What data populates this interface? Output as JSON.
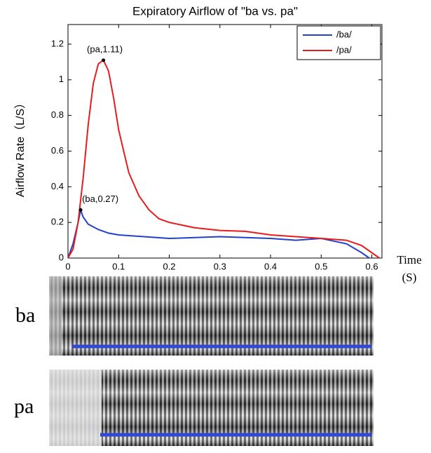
{
  "chart_data": {
    "type": "line",
    "title": "Expiratory Airflow of \"ba vs. pa\"",
    "x_label": [
      "Time",
      "(S)"
    ],
    "y_label": "Airflow Rate（L/S）",
    "xlim": [
      0,
      0.62
    ],
    "ylim": [
      0,
      1.31
    ],
    "xticks": [
      0,
      0.1,
      0.2,
      0.3,
      0.4,
      0.5,
      0.6
    ],
    "yticks": [
      0,
      0.2,
      0.4,
      0.6,
      0.8,
      1,
      1.2
    ],
    "legend": "upper right",
    "series": [
      {
        "name": "/ba/",
        "color": "#2340c8",
        "x": [
          0,
          0.01,
          0.02,
          0.025,
          0.03,
          0.04,
          0.06,
          0.08,
          0.1,
          0.15,
          0.2,
          0.3,
          0.4,
          0.45,
          0.5,
          0.55,
          0.58,
          0.595
        ],
        "values": [
          0,
          0.08,
          0.2,
          0.27,
          0.23,
          0.19,
          0.16,
          0.14,
          0.13,
          0.12,
          0.11,
          0.12,
          0.11,
          0.1,
          0.11,
          0.08,
          0.03,
          0
        ]
      },
      {
        "name": "/pa/",
        "color": "#e81c1c",
        "x": [
          0,
          0.01,
          0.02,
          0.03,
          0.04,
          0.05,
          0.06,
          0.07,
          0.08,
          0.09,
          0.1,
          0.12,
          0.14,
          0.16,
          0.18,
          0.2,
          0.25,
          0.3,
          0.35,
          0.4,
          0.45,
          0.5,
          0.55,
          0.58,
          0.6,
          0.615
        ],
        "values": [
          0,
          0.05,
          0.2,
          0.45,
          0.75,
          0.98,
          1.09,
          1.11,
          1.05,
          0.9,
          0.72,
          0.48,
          0.35,
          0.27,
          0.22,
          0.2,
          0.17,
          0.155,
          0.15,
          0.13,
          0.12,
          0.11,
          0.1,
          0.07,
          0.03,
          0
        ]
      }
    ],
    "annotations": [
      {
        "text": "(pa,1.11)",
        "x": 0.07,
        "y": 1.11
      },
      {
        "text": "(ba,0.27)",
        "x": 0.025,
        "y": 0.27
      }
    ],
    "spectrograms": [
      {
        "label": "ba"
      },
      {
        "label": "pa"
      }
    ]
  }
}
